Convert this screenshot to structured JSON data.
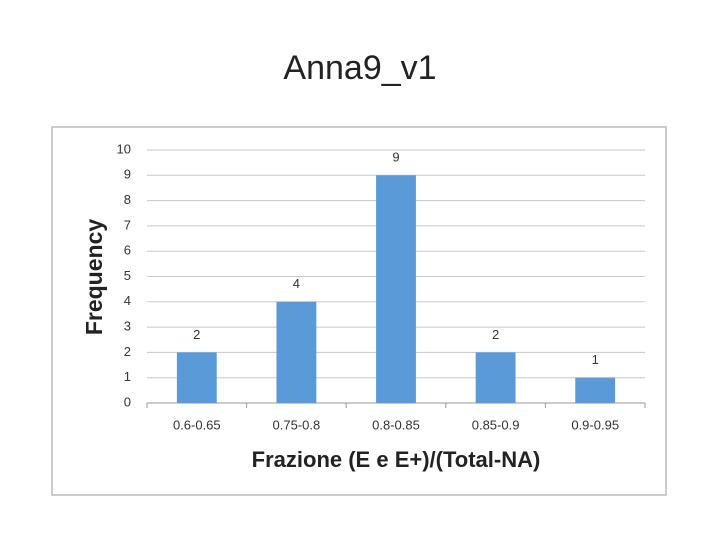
{
  "chart_data": {
    "type": "bar",
    "title": "Anna9_v1",
    "x_label": "Frazione (E e E+)/(Total-NA)",
    "y_label": "Frequency",
    "categories": [
      "0.6-0.65",
      "0.75-0.8",
      "0.8-0.85",
      "0.85-0.9",
      "0.9-0.95"
    ],
    "values": [
      2,
      4,
      9,
      2,
      1
    ],
    "color": "#5a9ad8",
    "ylim": [
      0,
      10
    ],
    "yticks": [
      0,
      1,
      2,
      3,
      4,
      5,
      6,
      7,
      8,
      9,
      10
    ],
    "grid": true
  }
}
